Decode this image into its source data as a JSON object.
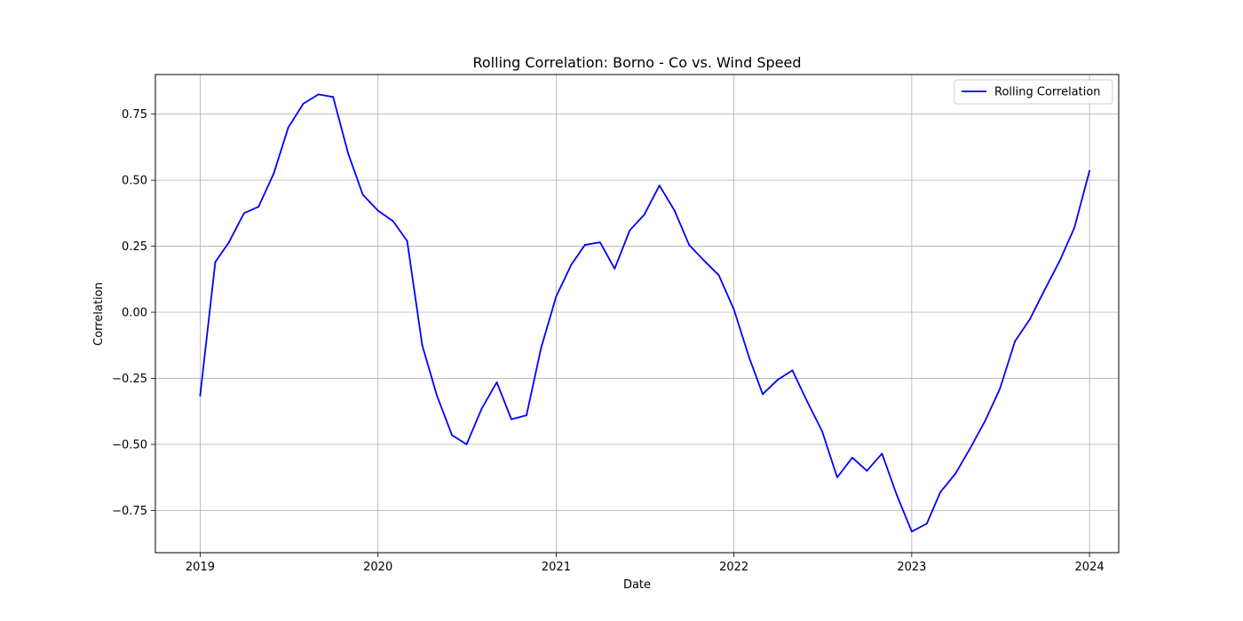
{
  "chart_data": {
    "type": "line",
    "title": "Rolling Correlation: Borno - Co vs. Wind Speed",
    "xlabel": "Date",
    "ylabel": "Correlation",
    "xlim": [
      "2018-10-01",
      "2024-03-01"
    ],
    "ylim": [
      -0.91,
      0.9
    ],
    "x_ticks": [
      {
        "label": "2019",
        "date": "2019-01-01"
      },
      {
        "label": "2020",
        "date": "2020-01-01"
      },
      {
        "label": "2021",
        "date": "2021-01-01"
      },
      {
        "label": "2022",
        "date": "2022-01-01"
      },
      {
        "label": "2023",
        "date": "2023-01-01"
      },
      {
        "label": "2024",
        "date": "2024-01-01"
      }
    ],
    "y_ticks": [
      {
        "label": "0.75",
        "value": 0.75
      },
      {
        "label": "0.50",
        "value": 0.5
      },
      {
        "label": "0.25",
        "value": 0.25
      },
      {
        "label": "0.00",
        "value": 0.0
      },
      {
        "label": "−0.25",
        "value": -0.25
      },
      {
        "label": "−0.50",
        "value": -0.5
      },
      {
        "label": "−0.75",
        "value": -0.75
      }
    ],
    "grid": true,
    "legend_position": "top-right",
    "series": [
      {
        "name": "Rolling Correlation",
        "color": "#0000ff",
        "x": [
          "2019-01-01",
          "2019-02-01",
          "2019-03-01",
          "2019-04-01",
          "2019-05-01",
          "2019-06-01",
          "2019-07-01",
          "2019-08-01",
          "2019-09-01",
          "2019-10-01",
          "2019-11-01",
          "2019-12-01",
          "2020-01-01",
          "2020-02-01",
          "2020-03-01",
          "2020-04-01",
          "2020-05-01",
          "2020-06-01",
          "2020-07-01",
          "2020-08-01",
          "2020-09-01",
          "2020-10-01",
          "2020-11-01",
          "2020-12-01",
          "2021-01-01",
          "2021-02-01",
          "2021-03-01",
          "2021-04-01",
          "2021-05-01",
          "2021-06-01",
          "2021-07-01",
          "2021-08-01",
          "2021-09-01",
          "2021-10-01",
          "2021-11-01",
          "2021-12-01",
          "2022-01-01",
          "2022-02-01",
          "2022-03-01",
          "2022-04-01",
          "2022-05-01",
          "2022-06-01",
          "2022-07-01",
          "2022-08-01",
          "2022-09-01",
          "2022-10-01",
          "2022-11-01",
          "2022-12-01",
          "2023-01-01",
          "2023-02-01",
          "2023-03-01",
          "2023-04-01",
          "2023-05-01",
          "2023-06-01",
          "2023-07-01",
          "2023-08-01",
          "2023-09-01",
          "2023-10-01",
          "2023-11-01",
          "2023-12-01",
          "2024-01-01"
        ],
        "values": [
          -0.315,
          0.19,
          0.265,
          0.375,
          0.4,
          0.525,
          0.7,
          0.79,
          0.825,
          0.815,
          0.6,
          0.445,
          0.385,
          0.345,
          0.27,
          -0.125,
          -0.315,
          -0.465,
          -0.5,
          -0.365,
          -0.265,
          -0.405,
          -0.39,
          -0.135,
          0.06,
          0.18,
          0.255,
          0.265,
          0.165,
          0.31,
          0.37,
          0.48,
          0.385,
          0.255,
          0.195,
          0.14,
          0.01,
          -0.17,
          -0.31,
          -0.255,
          -0.22,
          -0.34,
          -0.45,
          -0.625,
          -0.55,
          -0.6,
          -0.535,
          -0.69,
          -0.83,
          -0.8,
          -0.68,
          -0.61,
          -0.515,
          -0.41,
          -0.29,
          -0.11,
          -0.025,
          0.085,
          0.195,
          0.32,
          0.535
        ]
      }
    ]
  }
}
